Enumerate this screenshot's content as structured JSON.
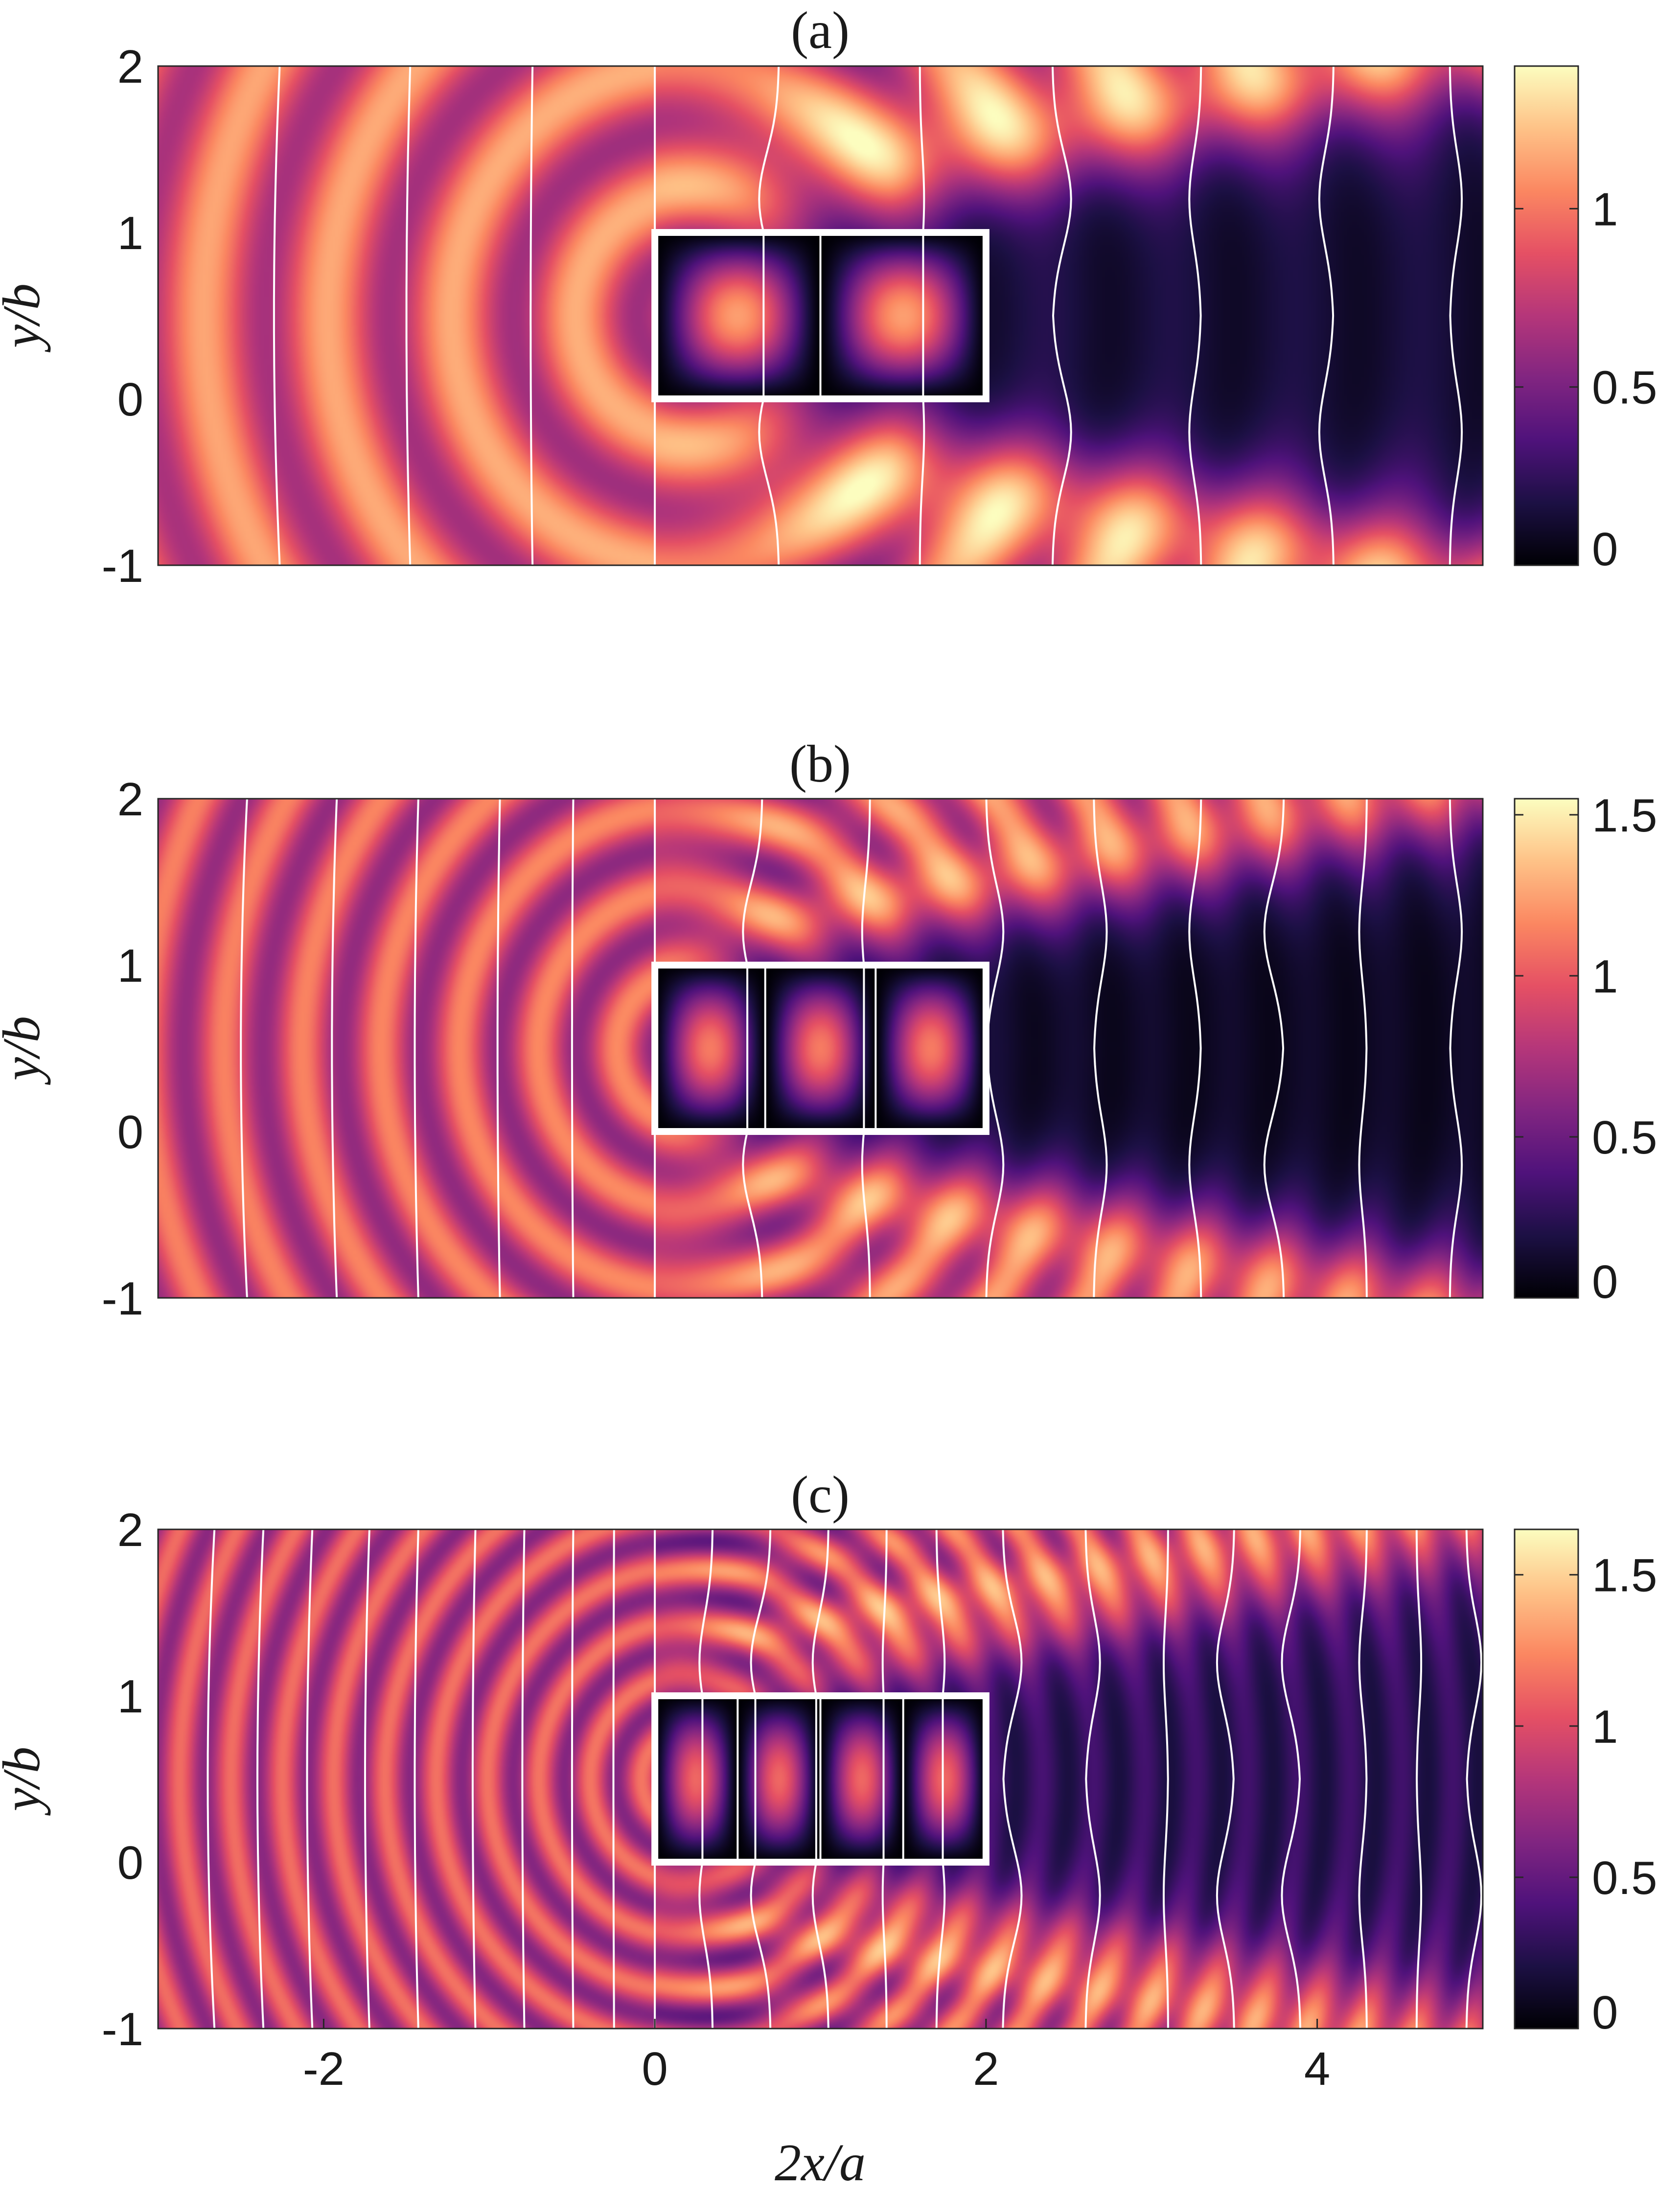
{
  "figure": {
    "xlabel": "2x/a",
    "shared_x_ticks": [
      "-2",
      "0",
      "2",
      "4"
    ],
    "y_tick_labels": [
      "2",
      "1",
      "0",
      "-1"
    ]
  },
  "colors": {
    "colormap": [
      "#000004",
      "#1c1044",
      "#4f127b",
      "#812581",
      "#b5367a",
      "#e55064",
      "#fb8761",
      "#fec287",
      "#fcfdbf"
    ],
    "contour": "#ffffff",
    "body_outline": "#ffffff"
  },
  "chart_data": [
    {
      "type": "heatmap",
      "title": "(a)",
      "ylabel": "y/b",
      "xlim": [
        -3,
        5
      ],
      "ylim": [
        -1,
        2
      ],
      "y_ticks": [
        2,
        1,
        0,
        -1
      ],
      "colorbar": {
        "min": 0,
        "max": 1.4,
        "ticks": [
          0,
          0.5,
          1
        ],
        "tick_labels": [
          "0",
          "0.5",
          "1"
        ]
      },
      "body": {
        "x": [
          0,
          2
        ],
        "y": [
          0,
          1
        ],
        "segments": 2
      },
      "wavelength": 1.5,
      "shadow_min": 0.15,
      "contours_x": [
        -2.3,
        -1.5,
        -0.75,
        0,
        0.75,
        1.6,
        2.4,
        3.3,
        4.1,
        4.8
      ]
    },
    {
      "type": "heatmap",
      "title": "(b)",
      "ylabel": "y/b",
      "xlim": [
        -3,
        5
      ],
      "ylim": [
        -1,
        2
      ],
      "y_ticks": [
        2,
        1,
        0,
        -1
      ],
      "colorbar": {
        "min": 0,
        "max": 1.55,
        "ticks": [
          0,
          0.5,
          1,
          1.5
        ],
        "tick_labels": [
          "0",
          "0.5",
          "1",
          "1.5"
        ]
      },
      "body": {
        "x": [
          0,
          2
        ],
        "y": [
          0,
          1
        ],
        "segments": 3
      },
      "wavelength": 0.95,
      "shadow_min": 0.1,
      "contours_x": [
        -2.5,
        -1.95,
        -1.45,
        -0.95,
        -0.5,
        0,
        0.65,
        1.3,
        2.0,
        2.65,
        3.3,
        3.8,
        4.3,
        4.8
      ]
    },
    {
      "type": "heatmap",
      "title": "(c)",
      "ylabel": "y/b",
      "xlim": [
        -3,
        5
      ],
      "ylim": [
        -1,
        2
      ],
      "y_ticks": [
        2,
        1,
        0,
        -1
      ],
      "colorbar": {
        "min": 0,
        "max": 1.65,
        "ticks": [
          0,
          0.5,
          1,
          1.5
        ],
        "tick_labels": [
          "0",
          "0.5",
          "1",
          "1.5"
        ]
      },
      "body": {
        "x": [
          0,
          2
        ],
        "y": [
          0,
          1
        ],
        "segments": 4
      },
      "wavelength": 0.62,
      "shadow_min": 0.3,
      "contours_x": [
        -2.7,
        -2.4,
        -2.1,
        -1.75,
        -1.45,
        -1.1,
        -0.8,
        -0.5,
        -0.25,
        0,
        0.35,
        0.7,
        1.05,
        1.4,
        1.7,
        2.1,
        2.6,
        3.1,
        3.5,
        3.9,
        4.3,
        4.6,
        4.9
      ]
    }
  ]
}
